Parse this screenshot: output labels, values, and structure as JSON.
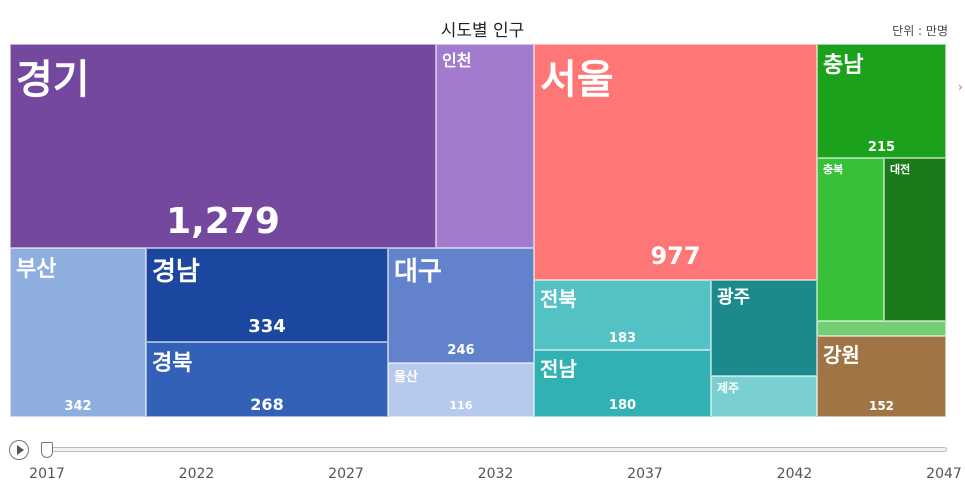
{
  "chart_data": {
    "type": "treemap",
    "title": "시도별 인구",
    "unit_label": "단위 : 만명",
    "tiles": [
      {
        "name": "경기",
        "value": 1279,
        "value_label": "1,279",
        "color": "#7548a0"
      },
      {
        "name": "인천",
        "value": null,
        "value_label": "",
        "color": "#a27bce"
      },
      {
        "name": "부산",
        "value": 342,
        "value_label": "342",
        "color": "#8eaee0"
      },
      {
        "name": "경남",
        "value": 334,
        "value_label": "334",
        "color": "#1c47a0"
      },
      {
        "name": "경북",
        "value": 268,
        "value_label": "268",
        "color": "#3461b8"
      },
      {
        "name": "대구",
        "value": 246,
        "value_label": "246",
        "color": "#6283cc"
      },
      {
        "name": "울산",
        "value": 116,
        "value_label": "116",
        "color": "#b8c9ee"
      },
      {
        "name": "서울",
        "value": 977,
        "value_label": "977",
        "color": "#fe7676"
      },
      {
        "name": "전북",
        "value": 183,
        "value_label": "183",
        "color": "#54c1c4"
      },
      {
        "name": "광주",
        "value": null,
        "value_label": "",
        "color": "#1c8a8c"
      },
      {
        "name": "전남",
        "value": 180,
        "value_label": "180",
        "color": "#32b1b4"
      },
      {
        "name": "제주",
        "value": null,
        "value_label": "",
        "color": "#7ad0d0"
      },
      {
        "name": "충남",
        "value": 215,
        "value_label": "215",
        "color": "#1ca11c"
      },
      {
        "name": "충북",
        "value": null,
        "value_label": "",
        "color": "#38c038"
      },
      {
        "name": "대전",
        "value": null,
        "value_label": "",
        "color": "#1b7a1b"
      },
      {
        "name": "",
        "value": null,
        "value_label": "",
        "color": "#74cf74"
      },
      {
        "name": "강원",
        "value": 152,
        "value_label": "152",
        "color": "#a07444"
      }
    ],
    "timeline": {
      "ticks": [
        "2017",
        "2022",
        "2027",
        "2032",
        "2037",
        "2042",
        "2047"
      ],
      "current": "2017"
    }
  }
}
